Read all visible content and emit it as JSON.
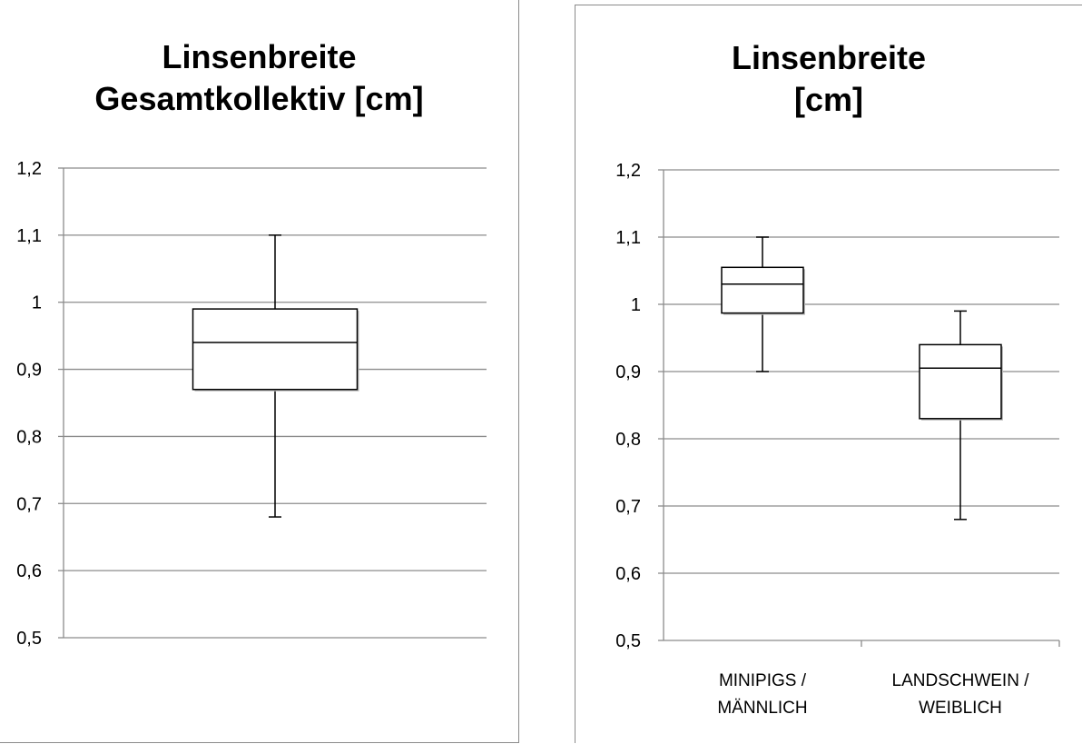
{
  "chart_data": [
    {
      "type": "boxplot",
      "title_lines": [
        "Linsenbreite",
        "Gesamtkollektiv [cm]"
      ],
      "ylim": [
        0.5,
        1.2
      ],
      "yticks": [
        "0,5",
        "0,6",
        "0,7",
        "0,8",
        "0,9",
        "1",
        "1,1",
        "1,2"
      ],
      "grid": true,
      "categories": [],
      "boxes": [
        {
          "name": "",
          "whisker_low": 0.68,
          "q1": 0.87,
          "median": 0.94,
          "q3": 0.99,
          "whisker_high": 1.1
        }
      ]
    },
    {
      "type": "boxplot",
      "title_lines": [
        "Linsenbreite",
        "[cm]"
      ],
      "ylim": [
        0.5,
        1.2
      ],
      "yticks": [
        "0,5",
        "0,6",
        "0,7",
        "0,8",
        "0,9",
        "1",
        "1,1",
        "1,2"
      ],
      "grid": true,
      "categories": [
        [
          "MINIPIGS /",
          "MÄNNLICH"
        ],
        [
          "LANDSCHWEIN /",
          "WEIBLICH"
        ]
      ],
      "boxes": [
        {
          "name": "MINIPIGS / MÄNNLICH",
          "whisker_low": 0.9,
          "q1": 0.987,
          "median": 1.03,
          "q3": 1.055,
          "whisker_high": 1.1
        },
        {
          "name": "LANDSCHWEIN / WEIBLICH",
          "whisker_low": 0.68,
          "q1": 0.83,
          "median": 0.905,
          "q3": 0.94,
          "whisker_high": 0.99
        }
      ]
    }
  ]
}
